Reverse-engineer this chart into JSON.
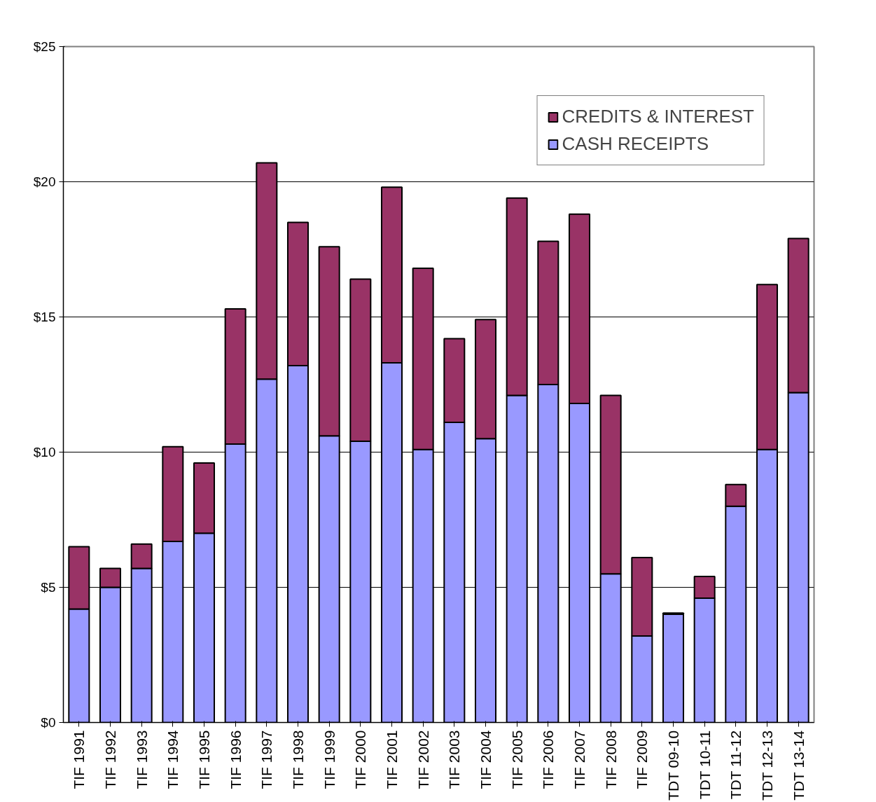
{
  "chart_data": {
    "type": "bar",
    "stacked": true,
    "categories": [
      "TIF 1991",
      "TIF 1992",
      "TIF 1993",
      "TIF 1994",
      "TIF 1995",
      "TIF 1996",
      "TIF 1997",
      "TIF 1998",
      "TIF 1999",
      "TIF 2000",
      "TIF 2001",
      "TIF 2002",
      "TIF 2003",
      "TIF 2004",
      "TIF 2005",
      "TIF 2006",
      "TIF 2007",
      "TIF 2008",
      "TIF 2009",
      "TDT 09-10",
      "TDT 10-11",
      "TDT 11-12",
      "TDT 12-13",
      "TDT 13-14"
    ],
    "series": [
      {
        "name": "CASH RECEIPTS",
        "color": "#9999ff",
        "values": [
          4.2,
          5.0,
          5.7,
          6.7,
          7.0,
          10.3,
          12.7,
          13.2,
          10.6,
          10.4,
          13.3,
          10.1,
          11.1,
          10.5,
          12.1,
          12.5,
          11.8,
          5.5,
          3.2,
          4.0,
          4.6,
          8.0,
          10.1,
          12.2
        ]
      },
      {
        "name": "CREDITS & INTEREST",
        "color": "#993366",
        "values": [
          2.3,
          0.7,
          0.9,
          3.5,
          2.6,
          5.0,
          8.0,
          5.3,
          7.0,
          6.0,
          6.5,
          6.7,
          3.1,
          4.4,
          7.3,
          5.3,
          7.0,
          6.6,
          2.9,
          0.05,
          0.8,
          0.8,
          6.1,
          5.7
        ]
      }
    ],
    "ylim": [
      0,
      25
    ],
    "yticks": [
      {
        "value": 0,
        "label": "$0"
      },
      {
        "value": 5,
        "label": "$5"
      },
      {
        "value": 10,
        "label": "$10"
      },
      {
        "value": 15,
        "label": "$15"
      },
      {
        "value": 20,
        "label": "$20"
      },
      {
        "value": 25,
        "label": "$25"
      }
    ],
    "grid": "y",
    "legend": "top right"
  }
}
